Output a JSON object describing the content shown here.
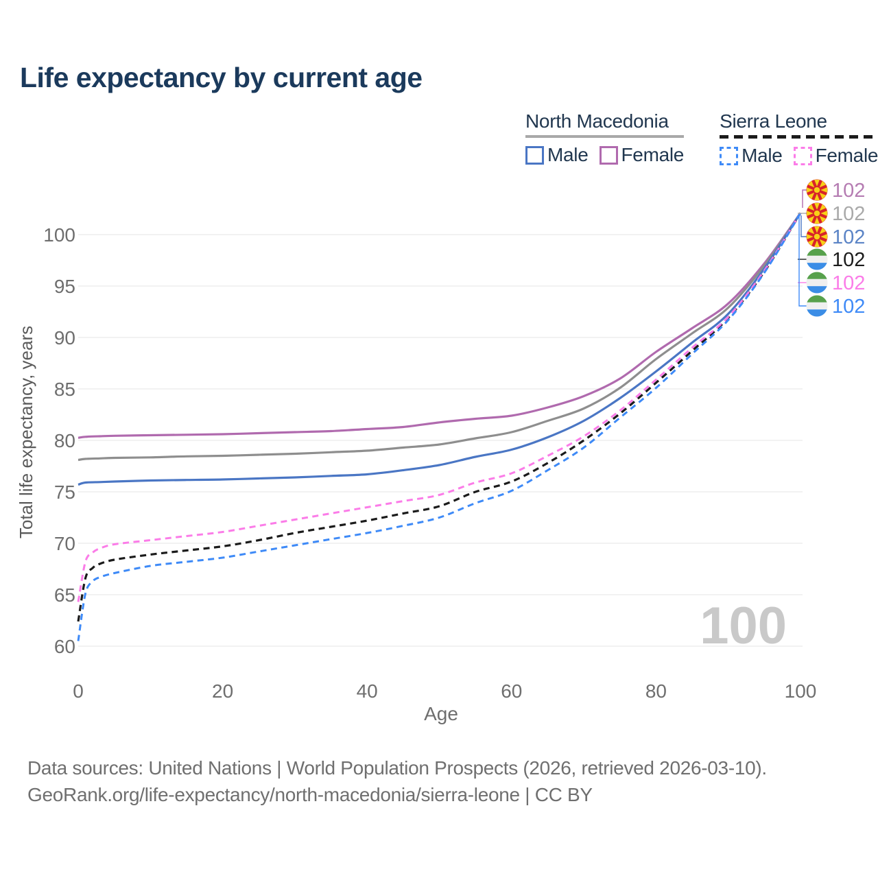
{
  "title": "Life expectancy by current age",
  "legend": {
    "groups": [
      {
        "name": "North Macedonia",
        "underline_style": "solid",
        "underline_color": "#a8a8a8",
        "items": [
          {
            "label": "Male",
            "color": "#4a76c4",
            "dash": "solid"
          },
          {
            "label": "Female",
            "color": "#b06aae",
            "dash": "solid"
          }
        ]
      },
      {
        "name": "Sierra Leone",
        "underline_style": "dashed",
        "underline_color": "#1b1b1b",
        "items": [
          {
            "label": "Male",
            "color": "#3e8af7",
            "dash": "dashed"
          },
          {
            "label": "Female",
            "color": "#fb7ce8",
            "dash": "dashed"
          }
        ]
      }
    ]
  },
  "watermark": "100",
  "footer": {
    "line1": "Data sources: United Nations | World Population Prospects (2026, retrieved 2026-03-10).",
    "line2": "GeoRank.org/life-expectancy/north-macedonia/sierra-leone | CC BY"
  },
  "chart_data": {
    "type": "line",
    "title": "Life expectancy by current age",
    "xlabel": "Age",
    "ylabel": "Total life expectancy, years",
    "xlim": [
      0,
      100
    ],
    "ylim": [
      60,
      103
    ],
    "x_ticks": [
      0,
      20,
      40,
      60,
      80,
      100
    ],
    "y_ticks": [
      60,
      65,
      70,
      75,
      80,
      85,
      90,
      95,
      100
    ],
    "grid": "horizontal",
    "legend_position": "top-right",
    "series": [
      {
        "name": "North Macedonia Female",
        "color": "#b06aae",
        "style": "solid",
        "width": 3.2,
        "points": [
          [
            0,
            80.25
          ],
          [
            1,
            80.35
          ],
          [
            3,
            80.4
          ],
          [
            5,
            80.45
          ],
          [
            10,
            80.5
          ],
          [
            15,
            80.55
          ],
          [
            20,
            80.6
          ],
          [
            25,
            80.7
          ],
          [
            30,
            80.8
          ],
          [
            35,
            80.9
          ],
          [
            40,
            81.1
          ],
          [
            45,
            81.3
          ],
          [
            50,
            81.75
          ],
          [
            55,
            82.1
          ],
          [
            60,
            82.4
          ],
          [
            65,
            83.2
          ],
          [
            70,
            84.3
          ],
          [
            75,
            86.0
          ],
          [
            80,
            88.6
          ],
          [
            85,
            90.9
          ],
          [
            90,
            93.3
          ],
          [
            95,
            97.2
          ],
          [
            100,
            102.1
          ]
        ]
      },
      {
        "name": "North Macedonia Both sexes",
        "color": "#8e8e8e",
        "style": "solid",
        "width": 3.2,
        "points": [
          [
            0,
            78.1
          ],
          [
            1,
            78.2
          ],
          [
            3,
            78.25
          ],
          [
            5,
            78.3
          ],
          [
            10,
            78.35
          ],
          [
            15,
            78.45
          ],
          [
            20,
            78.5
          ],
          [
            25,
            78.6
          ],
          [
            30,
            78.7
          ],
          [
            35,
            78.85
          ],
          [
            40,
            79.0
          ],
          [
            45,
            79.3
          ],
          [
            50,
            79.6
          ],
          [
            55,
            80.2
          ],
          [
            60,
            80.8
          ],
          [
            65,
            81.9
          ],
          [
            70,
            83.1
          ],
          [
            75,
            85.1
          ],
          [
            80,
            87.9
          ],
          [
            85,
            90.4
          ],
          [
            90,
            92.9
          ],
          [
            95,
            97.0
          ],
          [
            100,
            102.1
          ]
        ]
      },
      {
        "name": "North Macedonia Male",
        "color": "#4a76c4",
        "style": "solid",
        "width": 3.2,
        "points": [
          [
            0,
            75.7
          ],
          [
            1,
            75.9
          ],
          [
            3,
            75.95
          ],
          [
            5,
            76.0
          ],
          [
            10,
            76.1
          ],
          [
            15,
            76.15
          ],
          [
            20,
            76.2
          ],
          [
            25,
            76.3
          ],
          [
            30,
            76.4
          ],
          [
            35,
            76.55
          ],
          [
            40,
            76.7
          ],
          [
            45,
            77.1
          ],
          [
            50,
            77.6
          ],
          [
            55,
            78.4
          ],
          [
            60,
            79.1
          ],
          [
            65,
            80.3
          ],
          [
            70,
            81.9
          ],
          [
            75,
            84.1
          ],
          [
            80,
            86.7
          ],
          [
            85,
            89.5
          ],
          [
            90,
            92.3
          ],
          [
            95,
            96.7
          ],
          [
            100,
            102.1
          ]
        ]
      },
      {
        "name": "Sierra Leone Both sexes",
        "color": "#1b1b1b",
        "style": "dashed",
        "width": 3.2,
        "points": [
          [
            0,
            62.4
          ],
          [
            1,
            66.6
          ],
          [
            2,
            67.6
          ],
          [
            3,
            68.0
          ],
          [
            5,
            68.4
          ],
          [
            10,
            68.9
          ],
          [
            15,
            69.3
          ],
          [
            20,
            69.7
          ],
          [
            25,
            70.3
          ],
          [
            30,
            71.0
          ],
          [
            35,
            71.6
          ],
          [
            40,
            72.2
          ],
          [
            45,
            72.9
          ],
          [
            50,
            73.6
          ],
          [
            55,
            75.0
          ],
          [
            60,
            76.0
          ],
          [
            65,
            77.8
          ],
          [
            70,
            80.0
          ],
          [
            75,
            82.6
          ],
          [
            80,
            85.6
          ],
          [
            85,
            88.7
          ],
          [
            90,
            91.9
          ],
          [
            95,
            96.4
          ],
          [
            100,
            102.1
          ]
        ]
      },
      {
        "name": "Sierra Leone Female",
        "color": "#fb7ce8",
        "style": "dashed",
        "width": 3.0,
        "points": [
          [
            0,
            64.3
          ],
          [
            1,
            68.2
          ],
          [
            2,
            69.1
          ],
          [
            3,
            69.5
          ],
          [
            5,
            69.9
          ],
          [
            10,
            70.3
          ],
          [
            15,
            70.7
          ],
          [
            20,
            71.1
          ],
          [
            25,
            71.7
          ],
          [
            30,
            72.3
          ],
          [
            35,
            72.9
          ],
          [
            40,
            73.5
          ],
          [
            45,
            74.1
          ],
          [
            50,
            74.7
          ],
          [
            55,
            75.9
          ],
          [
            60,
            76.8
          ],
          [
            65,
            78.5
          ],
          [
            70,
            80.4
          ],
          [
            75,
            82.9
          ],
          [
            80,
            85.9
          ],
          [
            85,
            89.0
          ],
          [
            90,
            92.0
          ],
          [
            95,
            96.5
          ],
          [
            100,
            102.1
          ]
        ]
      },
      {
        "name": "Sierra Leone Male",
        "color": "#3e8af7",
        "style": "dashed",
        "width": 3.0,
        "points": [
          [
            0,
            60.5
          ],
          [
            1,
            65.1
          ],
          [
            2,
            66.3
          ],
          [
            3,
            66.7
          ],
          [
            5,
            67.1
          ],
          [
            10,
            67.8
          ],
          [
            15,
            68.2
          ],
          [
            20,
            68.6
          ],
          [
            25,
            69.2
          ],
          [
            30,
            69.8
          ],
          [
            35,
            70.4
          ],
          [
            40,
            71.0
          ],
          [
            45,
            71.7
          ],
          [
            50,
            72.5
          ],
          [
            55,
            73.9
          ],
          [
            60,
            75.1
          ],
          [
            65,
            77.1
          ],
          [
            70,
            79.3
          ],
          [
            75,
            82.2
          ],
          [
            80,
            85.1
          ],
          [
            85,
            88.4
          ],
          [
            90,
            91.7
          ],
          [
            95,
            96.3
          ],
          [
            100,
            102.1
          ]
        ]
      }
    ],
    "end_rows": [
      {
        "flag": "north-macedonia",
        "label": "102",
        "label_color": "#b57cb2",
        "line_color": "#b06aae"
      },
      {
        "flag": "north-macedonia",
        "label": "102",
        "label_color": "#a9a9a9",
        "line_color": "#a9a9a9"
      },
      {
        "flag": "north-macedonia",
        "label": "102",
        "label_color": "#5b84c6",
        "line_color": "#4a76c4"
      },
      {
        "flag": "sierra-leone",
        "label": "102",
        "label_color": "#1b1b1b",
        "line_color": "#1b1b1b"
      },
      {
        "flag": "sierra-leone",
        "label": "102",
        "label_color": "#fb7ce8",
        "line_color": "#fb7ce8"
      },
      {
        "flag": "sierra-leone",
        "label": "102",
        "label_color": "#3e8af7",
        "line_color": "#3e8af7"
      }
    ],
    "flag_colors": {
      "north_macedonia_red": "#d8232a",
      "north_macedonia_yellow": "#f7d117",
      "sierra_leone_green": "#57a14c",
      "sierra_leone_white": "#efefef",
      "sierra_leone_blue": "#3b8de6"
    },
    "text_colors": {
      "axis": "#6e6e6e",
      "axis_title": "#5a5a5a",
      "watermark": "#c9c9c9",
      "grid": "#ededed"
    }
  }
}
